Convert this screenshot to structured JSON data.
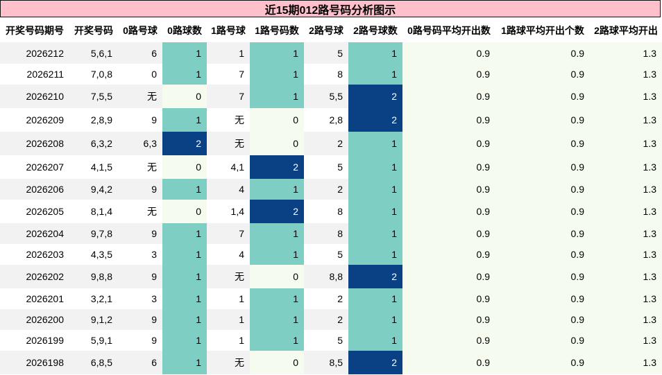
{
  "title": "近15期012路号码分析图示",
  "columns": [
    "开奖号码期号",
    "开奖号码",
    "0路号球",
    "0路球数",
    "1路号球",
    "1路号码数",
    "2路号球",
    "2路号球数",
    "0路号码平均开出数",
    "1路球平均开出个数",
    "2路球平均开出"
  ],
  "rows": [
    [
      "2026212",
      "5,6,1",
      "6",
      "1",
      "1",
      "1",
      "5",
      "1",
      "0.9",
      "0.9",
      "1.3"
    ],
    [
      "2026211",
      "7,0,8",
      "0",
      "1",
      "7",
      "1",
      "8",
      "1",
      "0.9",
      "0.9",
      "1.3"
    ],
    [
      "2026210",
      "7,5,5",
      "无",
      "0",
      "7",
      "1",
      "5,5",
      "2",
      "0.9",
      "0.9",
      "1.3"
    ],
    [
      "2026209",
      "2,8,9",
      "9",
      "1",
      "无",
      "0",
      "2,8",
      "2",
      "0.9",
      "0.9",
      "1.3"
    ],
    [
      "2026208",
      "6,3,2",
      "6,3",
      "2",
      "无",
      "0",
      "2",
      "1",
      "0.9",
      "0.9",
      "1.3"
    ],
    [
      "2026207",
      "4,1,5",
      "无",
      "0",
      "4,1",
      "2",
      "5",
      "1",
      "0.9",
      "0.9",
      "1.3"
    ],
    [
      "2026206",
      "9,4,2",
      "9",
      "1",
      "4",
      "1",
      "2",
      "1",
      "0.9",
      "0.9",
      "1.3"
    ],
    [
      "2026205",
      "8,1,4",
      "无",
      "0",
      "1,4",
      "2",
      "8",
      "1",
      "0.9",
      "0.9",
      "1.3"
    ],
    [
      "2026204",
      "9,7,8",
      "9",
      "1",
      "7",
      "1",
      "8",
      "1",
      "0.9",
      "0.9",
      "1.3"
    ],
    [
      "2026203",
      "4,3,5",
      "3",
      "1",
      "4",
      "1",
      "5",
      "1",
      "0.9",
      "0.9",
      "1.3"
    ],
    [
      "2026202",
      "9,8,8",
      "9",
      "1",
      "无",
      "0",
      "8,8",
      "2",
      "0.9",
      "0.9",
      "1.3"
    ],
    [
      "2026201",
      "3,2,1",
      "3",
      "1",
      "1",
      "1",
      "2",
      "1",
      "0.9",
      "0.9",
      "1.3"
    ],
    [
      "2026200",
      "9,1,2",
      "9",
      "1",
      "1",
      "1",
      "2",
      "1",
      "0.9",
      "0.9",
      "1.3"
    ],
    [
      "2026199",
      "5,9,1",
      "9",
      "1",
      "1",
      "1",
      "5",
      "1",
      "0.9",
      "0.9",
      "1.3"
    ],
    [
      "2026198",
      "6,8,5",
      "6",
      "1",
      "无",
      "0",
      "8,5",
      "2",
      "0.9",
      "0.9",
      "1.3"
    ]
  ],
  "colors": {
    "title_bg": "#ffc0cb",
    "count_1": "#7ecec4",
    "count_2": "#0a4184",
    "count_0": "#f6fbf0",
    "stripe": "#f2f2f2"
  }
}
